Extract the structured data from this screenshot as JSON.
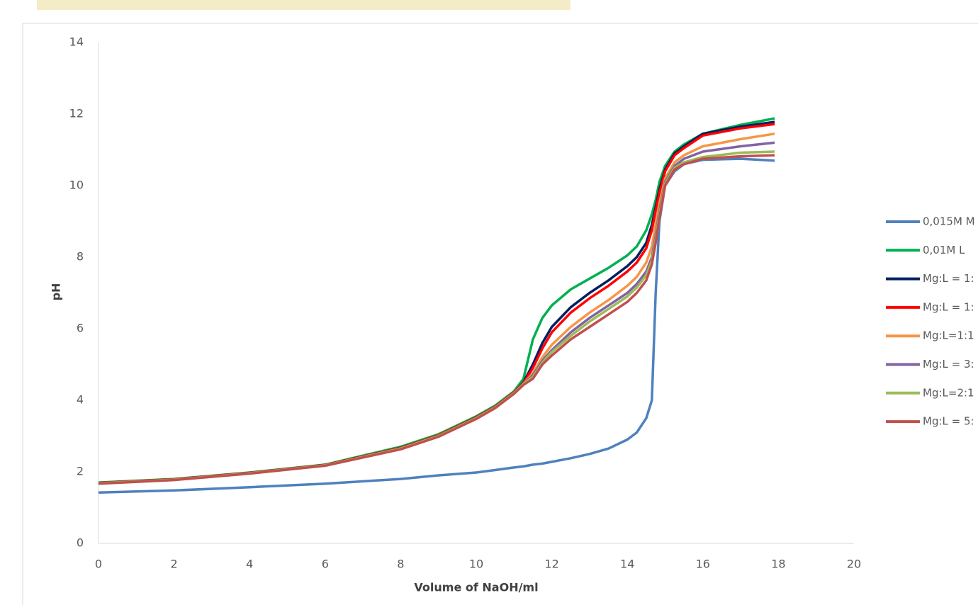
{
  "chart_data": {
    "type": "line",
    "x_label": "Volume of NaOH/ml",
    "y_label": "pH",
    "xlim": [
      0,
      20
    ],
    "xticks": [
      0,
      2,
      4,
      6,
      8,
      10,
      12,
      14,
      16,
      18,
      20
    ],
    "ylim": [
      0,
      14
    ],
    "yticks": [
      0,
      2,
      4,
      6,
      8,
      10,
      12,
      14
    ],
    "grid": false,
    "legend": "right",
    "x": [
      0,
      2,
      4,
      6,
      8,
      9,
      10,
      10.5,
      11,
      11.25,
      11.5,
      11.75,
      12,
      12.5,
      13,
      13.5,
      14,
      14.25,
      14.5,
      14.65,
      14.75,
      14.85,
      15,
      15.25,
      15.5,
      16,
      17,
      17.9
    ],
    "series": [
      {
        "name": "0,015M M",
        "color": "#4f81bd",
        "values": [
          1.42,
          1.48,
          1.57,
          1.67,
          1.8,
          1.9,
          1.98,
          2.05,
          2.12,
          2.15,
          2.2,
          2.23,
          2.28,
          2.38,
          2.5,
          2.65,
          2.9,
          3.1,
          3.5,
          4.0,
          7.0,
          9.0,
          10.0,
          10.4,
          10.6,
          10.72,
          10.75,
          10.7
        ]
      },
      {
        "name": "0,01M L",
        "color": "#00b050",
        "values": [
          1.7,
          1.8,
          1.98,
          2.2,
          2.7,
          3.05,
          3.55,
          3.85,
          4.25,
          4.6,
          5.7,
          6.3,
          6.65,
          7.1,
          7.4,
          7.7,
          8.05,
          8.3,
          8.75,
          9.2,
          9.6,
          10.1,
          10.55,
          10.95,
          11.15,
          11.45,
          11.7,
          11.88
        ]
      },
      {
        "name": "Mg:L = 1:",
        "color": "#002060",
        "values": [
          1.69,
          1.79,
          1.97,
          2.19,
          2.67,
          3.02,
          3.52,
          3.82,
          4.22,
          4.5,
          5.0,
          5.6,
          6.05,
          6.6,
          7.0,
          7.35,
          7.75,
          8.0,
          8.4,
          8.9,
          9.4,
          9.9,
          10.45,
          10.9,
          11.1,
          11.45,
          11.65,
          11.78
        ]
      },
      {
        "name": "Mg:L = 1:",
        "color": "#ff0000",
        "values": [
          1.69,
          1.79,
          1.97,
          2.19,
          2.67,
          3.02,
          3.52,
          3.82,
          4.22,
          4.48,
          4.9,
          5.45,
          5.9,
          6.45,
          6.85,
          7.2,
          7.6,
          7.85,
          8.25,
          8.75,
          9.3,
          9.8,
          10.4,
          10.85,
          11.05,
          11.4,
          11.6,
          11.72
        ]
      },
      {
        "name": "Mg:L=1:1",
        "color": "#f79646",
        "values": [
          1.68,
          1.78,
          1.96,
          2.18,
          2.65,
          3.0,
          3.5,
          3.8,
          4.2,
          4.46,
          4.75,
          5.2,
          5.55,
          6.05,
          6.45,
          6.8,
          7.2,
          7.45,
          7.85,
          8.3,
          8.9,
          9.5,
          10.2,
          10.65,
          10.85,
          11.1,
          11.3,
          11.45
        ]
      },
      {
        "name": "Mg:L = 3:",
        "color": "#8064a2",
        "values": [
          1.68,
          1.78,
          1.96,
          2.18,
          2.65,
          3.0,
          3.5,
          3.8,
          4.2,
          4.45,
          4.7,
          5.1,
          5.4,
          5.9,
          6.3,
          6.65,
          7.0,
          7.25,
          7.6,
          8.0,
          8.6,
          9.3,
          10.1,
          10.55,
          10.75,
          10.95,
          11.1,
          11.2
        ]
      },
      {
        "name": "Mg:L=2:1",
        "color": "#9bbb59",
        "values": [
          1.68,
          1.78,
          1.96,
          2.18,
          2.65,
          3.0,
          3.5,
          3.8,
          4.2,
          4.45,
          4.65,
          5.05,
          5.35,
          5.8,
          6.2,
          6.55,
          6.9,
          7.15,
          7.5,
          7.9,
          8.5,
          9.2,
          10.05,
          10.5,
          10.65,
          10.8,
          10.92,
          10.95
        ]
      },
      {
        "name": "Mg:L = 5:",
        "color": "#c0504d",
        "values": [
          1.67,
          1.77,
          1.95,
          2.17,
          2.63,
          2.98,
          3.48,
          3.78,
          4.18,
          4.43,
          4.6,
          5.0,
          5.25,
          5.7,
          6.05,
          6.4,
          6.75,
          7.0,
          7.35,
          7.8,
          8.4,
          9.1,
          10.0,
          10.45,
          10.6,
          10.75,
          10.82,
          10.85
        ]
      }
    ]
  }
}
